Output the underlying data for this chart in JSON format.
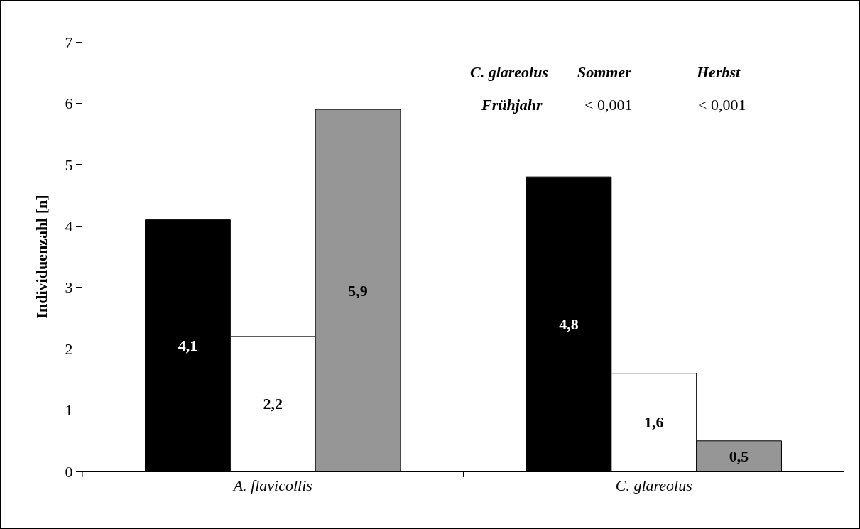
{
  "chart_data": {
    "type": "bar",
    "ylabel": "Individuenzahl [n]",
    "categories": [
      "A. flavicollis",
      "C. glareolus"
    ],
    "series": [
      {
        "color": "#000000",
        "values": [
          4.1,
          4.8
        ],
        "value_labels": [
          "4,1",
          "4,8"
        ]
      },
      {
        "color": "#ffffff",
        "values": [
          2.2,
          1.6
        ],
        "value_labels": [
          "2,2",
          "1,6"
        ]
      },
      {
        "color": "#969696",
        "values": [
          5.9,
          0.5
        ],
        "value_labels": [
          "5,9",
          "0,5"
        ]
      }
    ],
    "ylim": [
      0,
      7
    ],
    "yticks": [
      0,
      1,
      2,
      3,
      4,
      5,
      6,
      7
    ],
    "grid": false,
    "annotations": [
      "C. glareolus",
      "Sommer",
      "Herbst",
      "Frühjahr",
      "< 0,001",
      "< 0,001"
    ]
  }
}
